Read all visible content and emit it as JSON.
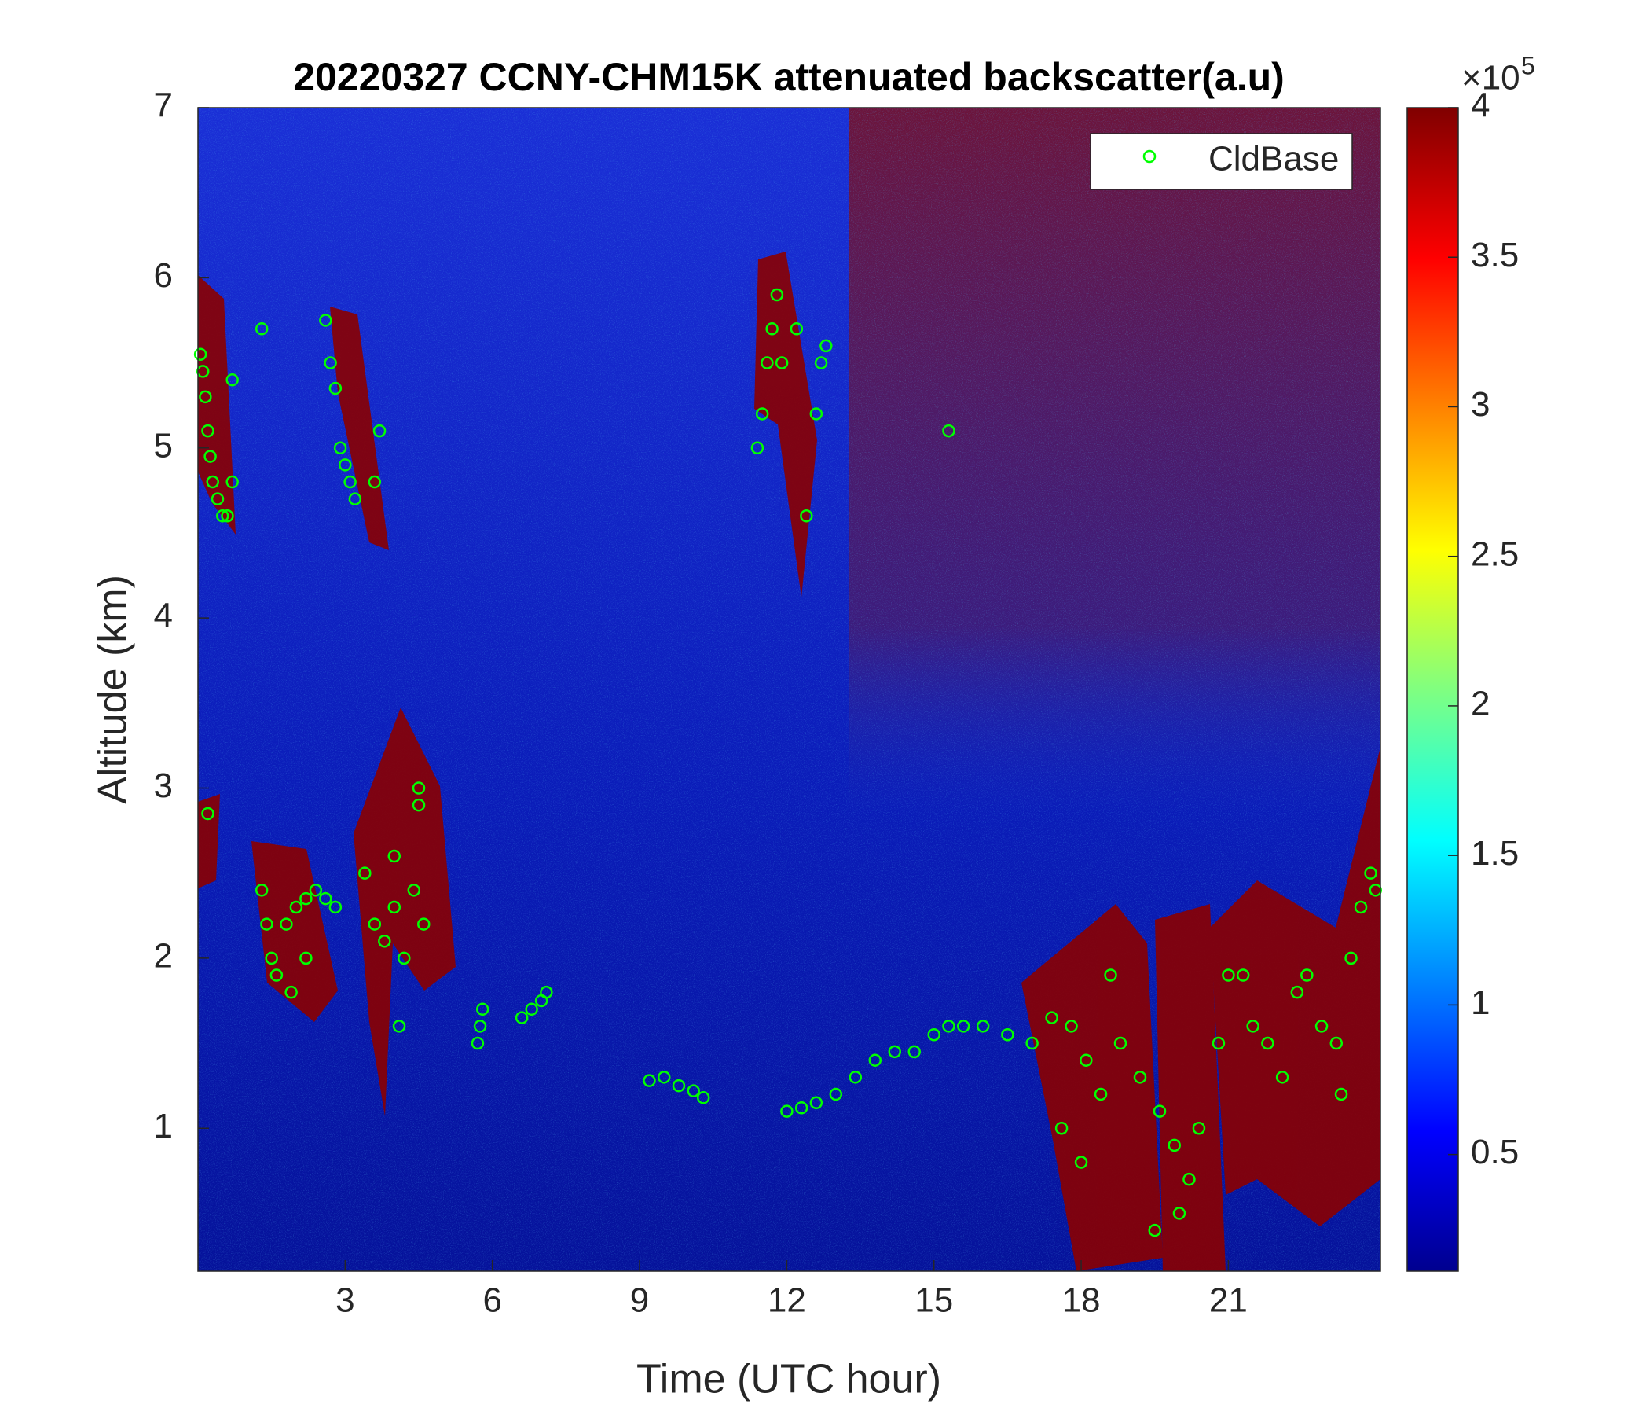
{
  "chart_data": {
    "type": "scatter",
    "title": "20220327 CCNY-CHM15K attenuated backscatter(a.u)",
    "x_label": "Time (UTC hour)",
    "y_label": "Altitude (km)",
    "xlim": [
      0,
      24.1
    ],
    "ylim": [
      0.16,
      7
    ],
    "xticks": [
      3,
      6,
      9,
      12,
      15,
      18,
      21
    ],
    "yticks": [
      1,
      2,
      3,
      4,
      5,
      6,
      7
    ],
    "clim": [
      0.11,
      4
    ],
    "cticks": [
      0.5,
      1,
      1.5,
      2,
      2.5,
      3,
      3.5,
      4
    ],
    "colorbar_multiplier": {
      "base": "×10",
      "exponent": "5"
    },
    "legend": "northeast",
    "series": [
      {
        "name": "CldBase",
        "color": "#00ff00",
        "x": [
          0.05,
          0.1,
          0.15,
          0.2,
          0.25,
          0.3,
          0.4,
          0.5,
          0.6,
          0.7,
          0.7,
          1.3,
          2.6,
          2.7,
          2.8,
          2.9,
          3.0,
          3.1,
          3.2,
          3.6,
          3.7,
          0.2,
          1.3,
          1.4,
          1.5,
          1.6,
          1.8,
          2.0,
          2.2,
          2.4,
          2.6,
          2.8,
          1.9,
          2.2,
          3.4,
          3.6,
          3.8,
          4.0,
          4.2,
          4.4,
          4.6,
          4.0,
          4.5,
          4.5,
          4.1,
          5.7,
          5.75,
          5.8,
          6.6,
          6.8,
          7.0,
          7.1,
          9.2,
          9.5,
          9.8,
          10.1,
          10.3,
          11.4,
          11.5,
          11.6,
          11.7,
          11.8,
          11.9,
          12.2,
          12.4,
          12.6,
          12.7,
          12.8,
          12.0,
          12.3,
          12.6,
          13.0,
          13.4,
          13.8,
          14.2,
          14.6,
          15.0,
          15.3,
          15.3,
          15.6,
          16.0,
          16.5,
          17.0,
          17.4,
          17.8,
          18.1,
          18.4,
          18.8,
          19.2,
          19.6,
          19.9,
          20.2,
          20.4,
          20.8,
          21.0,
          21.3,
          21.5,
          21.8,
          22.1,
          22.4,
          22.6,
          22.9,
          23.2,
          23.5,
          23.7,
          23.9,
          24.0,
          19.5,
          20.0,
          18.0,
          17.6,
          18.6,
          23.3
        ],
        "y": [
          5.55,
          5.45,
          5.3,
          5.1,
          4.95,
          4.8,
          4.7,
          4.6,
          4.6,
          4.8,
          5.4,
          5.7,
          5.75,
          5.5,
          5.35,
          5.0,
          4.9,
          4.8,
          4.7,
          4.8,
          5.1,
          2.85,
          2.4,
          2.2,
          2.0,
          1.9,
          2.2,
          2.3,
          2.35,
          2.4,
          2.35,
          2.3,
          1.8,
          2.0,
          2.5,
          2.2,
          2.1,
          2.3,
          2.0,
          2.4,
          2.2,
          2.6,
          2.9,
          3.0,
          1.6,
          1.5,
          1.6,
          1.7,
          1.65,
          1.7,
          1.75,
          1.8,
          1.28,
          1.3,
          1.25,
          1.22,
          1.18,
          5.0,
          5.2,
          5.5,
          5.7,
          5.9,
          5.5,
          5.7,
          4.6,
          5.2,
          5.5,
          5.6,
          1.1,
          1.12,
          1.15,
          1.2,
          1.3,
          1.4,
          1.45,
          1.45,
          1.55,
          1.6,
          5.1,
          1.6,
          1.6,
          1.55,
          1.5,
          1.65,
          1.6,
          1.4,
          1.2,
          1.5,
          1.3,
          1.1,
          0.9,
          0.7,
          1.0,
          1.5,
          1.9,
          1.9,
          1.6,
          1.5,
          1.3,
          1.8,
          1.9,
          1.6,
          1.5,
          2.0,
          2.3,
          2.5,
          2.4,
          0.4,
          0.5,
          0.8,
          1.0,
          1.9,
          1.2
        ]
      }
    ]
  }
}
